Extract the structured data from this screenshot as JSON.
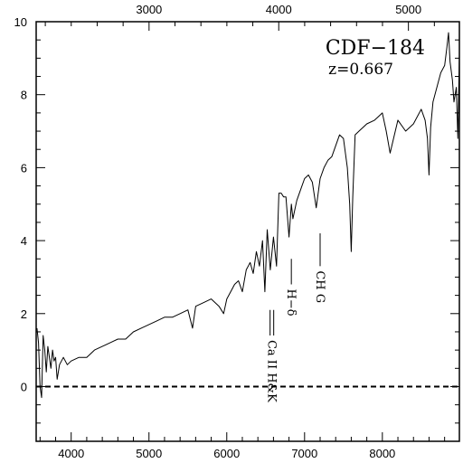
{
  "chart_data": {
    "type": "line",
    "title": "CDF−184",
    "subtitle": "z=0.667",
    "xlabel": "",
    "ylabel": "",
    "xlim": [
      3550,
      8990
    ],
    "ylim": [
      -1.5,
      10
    ],
    "x_ticks": [
      4000,
      5000,
      6000,
      7000,
      8000
    ],
    "x_tick_labels": [
      "4000",
      "5000",
      "6000",
      "7000",
      "8000"
    ],
    "top_ticks": [
      3000,
      4000,
      5000
    ],
    "top_tick_labels": [
      "3000",
      "4000",
      "5000"
    ],
    "y_ticks": [
      0,
      2,
      4,
      6,
      8,
      10
    ],
    "y_tick_labels": [
      "0",
      "2",
      "4",
      "6",
      "8",
      "10"
    ],
    "reference_line": {
      "y": 0,
      "style": "dashed"
    },
    "line_labels": [
      {
        "label": "Ca II H&K",
        "x": 6580,
        "y_from": 2.1,
        "y_to": 1.4
      },
      {
        "label": "H−δ",
        "x": 6830,
        "y_from": 3.5,
        "y_to": 2.8
      },
      {
        "label": "CH G",
        "x": 7200,
        "y_from": 4.2,
        "y_to": 3.3
      }
    ],
    "series": [
      {
        "x": [
          3560,
          3580,
          3600,
          3620,
          3640,
          3660,
          3680,
          3700,
          3720,
          3740,
          3760,
          3780,
          3800,
          3820,
          3850,
          3900,
          3950,
          4000,
          4100,
          4200,
          4300,
          4400,
          4500,
          4600,
          4700,
          4800,
          4900,
          5000,
          5100,
          5200,
          5300,
          5400,
          5500,
          5560,
          5600,
          5700,
          5800,
          5900,
          5960,
          6000,
          6050,
          6100,
          6150,
          6200,
          6250,
          6300,
          6340,
          6380,
          6420,
          6460,
          6490,
          6520,
          6560,
          6600,
          6640,
          6670,
          6700,
          6730,
          6760,
          6800,
          6830,
          6850,
          6900,
          6950,
          7000,
          7050,
          7100,
          7150,
          7200,
          7250,
          7300,
          7350,
          7400,
          7450,
          7500,
          7550,
          7580,
          7600,
          7620,
          7650,
          7700,
          7800,
          7900,
          8000,
          8050,
          8100,
          8200,
          8300,
          8400,
          8500,
          8550,
          8580,
          8600,
          8620,
          8650,
          8700,
          8750,
          8800,
          8830,
          8850,
          8870,
          8900,
          8920,
          8950,
          8970,
          8990
        ],
        "y": [
          1.6,
          1.2,
          0.0,
          -0.3,
          1.4,
          1.0,
          0.4,
          1.1,
          0.8,
          0.5,
          1.0,
          0.7,
          0.8,
          0.2,
          0.6,
          0.8,
          0.6,
          0.7,
          0.8,
          0.8,
          1.0,
          1.1,
          1.2,
          1.3,
          1.3,
          1.5,
          1.6,
          1.7,
          1.8,
          1.9,
          1.9,
          2.0,
          2.1,
          1.6,
          2.2,
          2.3,
          2.4,
          2.2,
          2.0,
          2.4,
          2.6,
          2.8,
          2.9,
          2.6,
          3.2,
          3.4,
          3.1,
          3.7,
          3.3,
          4.0,
          2.6,
          4.3,
          3.2,
          4.1,
          3.3,
          5.3,
          5.3,
          5.2,
          5.2,
          4.1,
          5.0,
          4.6,
          5.1,
          5.4,
          5.7,
          5.8,
          5.6,
          4.9,
          5.7,
          6.0,
          6.2,
          6.3,
          6.6,
          6.9,
          6.8,
          6.0,
          5.0,
          3.7,
          5.2,
          6.9,
          7.0,
          7.2,
          7.3,
          7.5,
          7.0,
          6.4,
          7.3,
          7.0,
          7.2,
          7.6,
          7.3,
          6.8,
          5.8,
          7.1,
          7.8,
          8.2,
          8.6,
          8.8,
          9.3,
          9.7,
          8.9,
          8.4,
          7.8,
          8.2,
          6.8,
          9.1
        ]
      }
    ]
  }
}
